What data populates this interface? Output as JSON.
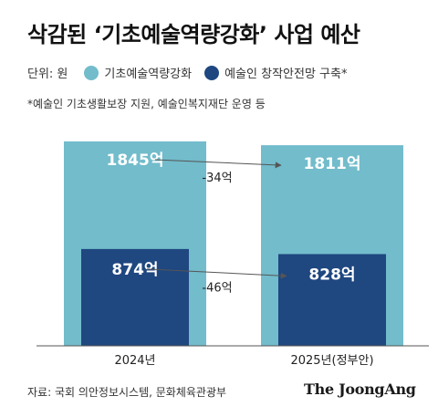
{
  "title": "삭감된 ‘기초예술역량강화’ 사업 예산",
  "legend": {
    "unit_label": "단위: 원",
    "items": [
      {
        "label": "기초예술역량강화",
        "color": "#72bccb"
      },
      {
        "label": "예술인 창작안전망 구축*",
        "color": "#1f4780"
      }
    ]
  },
  "footnote": "*예술인 기초생활보장 지원, 예술인복지재단 운영 등",
  "chart_data": {
    "type": "bar",
    "categories": [
      "2024년",
      "2025년(정부안)"
    ],
    "series": [
      {
        "name": "기초예술역량강화",
        "values": [
          1845,
          1811
        ],
        "value_labels": [
          "1845억",
          "1811억"
        ],
        "color": "#72bccb"
      },
      {
        "name": "예술인 창작안전망 구축*",
        "values": [
          874,
          828
        ],
        "value_labels": [
          "874억",
          "828억"
        ],
        "color": "#1f4780"
      }
    ],
    "changes": [
      {
        "series": "기초예술역량강화",
        "label": "-34억"
      },
      {
        "series": "예술인 창작안전망 구축*",
        "label": "-46억"
      }
    ],
    "layout": "overlapping",
    "ylim": [
      0,
      1900
    ],
    "xlabel": "",
    "ylabel": "",
    "grid": false
  },
  "source": "자료: 국회 의안정보시스템, 문화체육관광부",
  "brand": "The JoongAng"
}
